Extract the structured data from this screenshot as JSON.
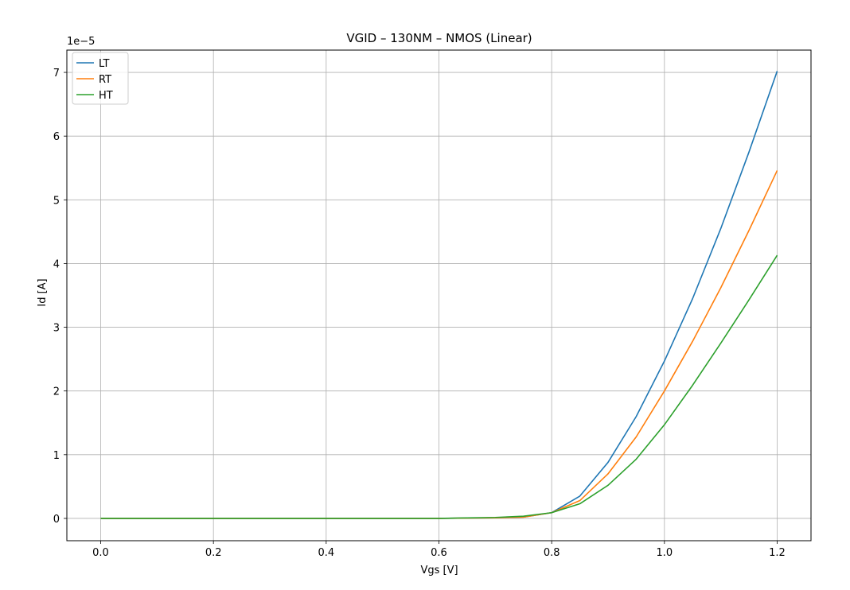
{
  "chart_data": {
    "type": "line",
    "title": "VGID – 130NM – NMOS (Linear)",
    "xlabel": "Vgs [V]",
    "ylabel": "Id [A]",
    "y_offset_text": "1e−5",
    "xlim": [
      -0.06,
      1.26
    ],
    "ylim": [
      -0.35,
      7.35
    ],
    "xticks": [
      0.0,
      0.2,
      0.4,
      0.6,
      0.8,
      1.0,
      1.2
    ],
    "xtick_labels": [
      "0.0",
      "0.2",
      "0.4",
      "0.6",
      "0.8",
      "1.0",
      "1.2"
    ],
    "yticks": [
      0,
      1,
      2,
      3,
      4,
      5,
      6,
      7
    ],
    "ytick_labels": [
      "0",
      "1",
      "2",
      "3",
      "4",
      "5",
      "6",
      "7"
    ],
    "grid": true,
    "legend_position": "top-left",
    "x": [
      0.0,
      0.05,
      0.1,
      0.15,
      0.2,
      0.25,
      0.3,
      0.35,
      0.4,
      0.45,
      0.5,
      0.55,
      0.6,
      0.65,
      0.7,
      0.75,
      0.8,
      0.85,
      0.9,
      0.95,
      1.0,
      1.05,
      1.1,
      1.15,
      1.2
    ],
    "series": [
      {
        "name": "LT",
        "color": "#1f77b4",
        "values": [
          0,
          0,
          0,
          0,
          0,
          0,
          0,
          0,
          0,
          0,
          0,
          0,
          0,
          0.005,
          0.01,
          0.02,
          0.09,
          0.35,
          0.88,
          1.6,
          2.47,
          3.45,
          4.55,
          5.75,
          7.02
        ]
      },
      {
        "name": "RT",
        "color": "#ff7f0e",
        "values": [
          0,
          0,
          0,
          0,
          0,
          0,
          0,
          0,
          0,
          0,
          0,
          0,
          0,
          0.005,
          0.01,
          0.02,
          0.09,
          0.28,
          0.7,
          1.28,
          2.0,
          2.78,
          3.62,
          4.52,
          5.46
        ]
      },
      {
        "name": "HT",
        "color": "#2ca02c",
        "values": [
          0,
          0,
          0,
          0,
          0,
          0,
          0,
          0,
          0,
          0,
          0,
          0,
          0,
          0.008,
          0.015,
          0.035,
          0.09,
          0.23,
          0.52,
          0.93,
          1.47,
          2.09,
          2.75,
          3.43,
          4.13
        ]
      }
    ]
  }
}
